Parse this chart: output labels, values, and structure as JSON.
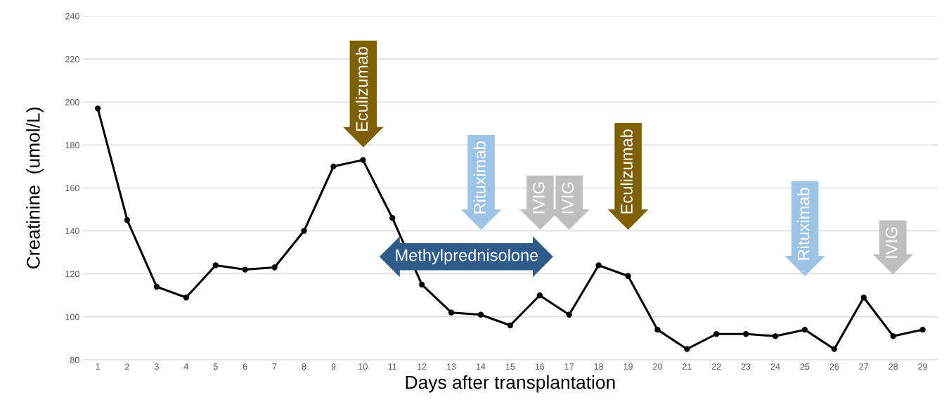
{
  "chart_data": {
    "type": "line",
    "xlabel": "Days after transplantation",
    "ylabel": "Creatinine  (umol/L)",
    "categories": [
      "1",
      "2",
      "3",
      "4",
      "5",
      "6",
      "7",
      "8",
      "9",
      "10",
      "11",
      "12",
      "13",
      "14",
      "15",
      "16",
      "17",
      "18",
      "19",
      "20",
      "21",
      "22",
      "23",
      "24",
      "25",
      "26",
      "27",
      "28",
      "29"
    ],
    "series": [
      {
        "color": "#000000",
        "values": [
          197,
          145,
          114,
          109,
          124,
          122,
          123,
          140,
          170,
          173,
          146,
          115,
          102,
          101,
          96,
          110,
          101,
          124,
          119,
          94,
          85,
          92,
          92,
          91,
          94,
          85,
          109,
          91,
          94
        ]
      }
    ],
    "ylim": [
      80,
      240
    ],
    "yticks": [
      80,
      100,
      120,
      140,
      160,
      180,
      200,
      220,
      240
    ],
    "grid": "y",
    "marker": "circle",
    "line_style": "solid",
    "legend": false,
    "annotations": [
      "Eculizumab",
      "Rituximab",
      "IVIG",
      "IVIG",
      "Eculizumab",
      "Rituximab",
      "IVIG",
      "Methylprednisolone"
    ]
  }
}
